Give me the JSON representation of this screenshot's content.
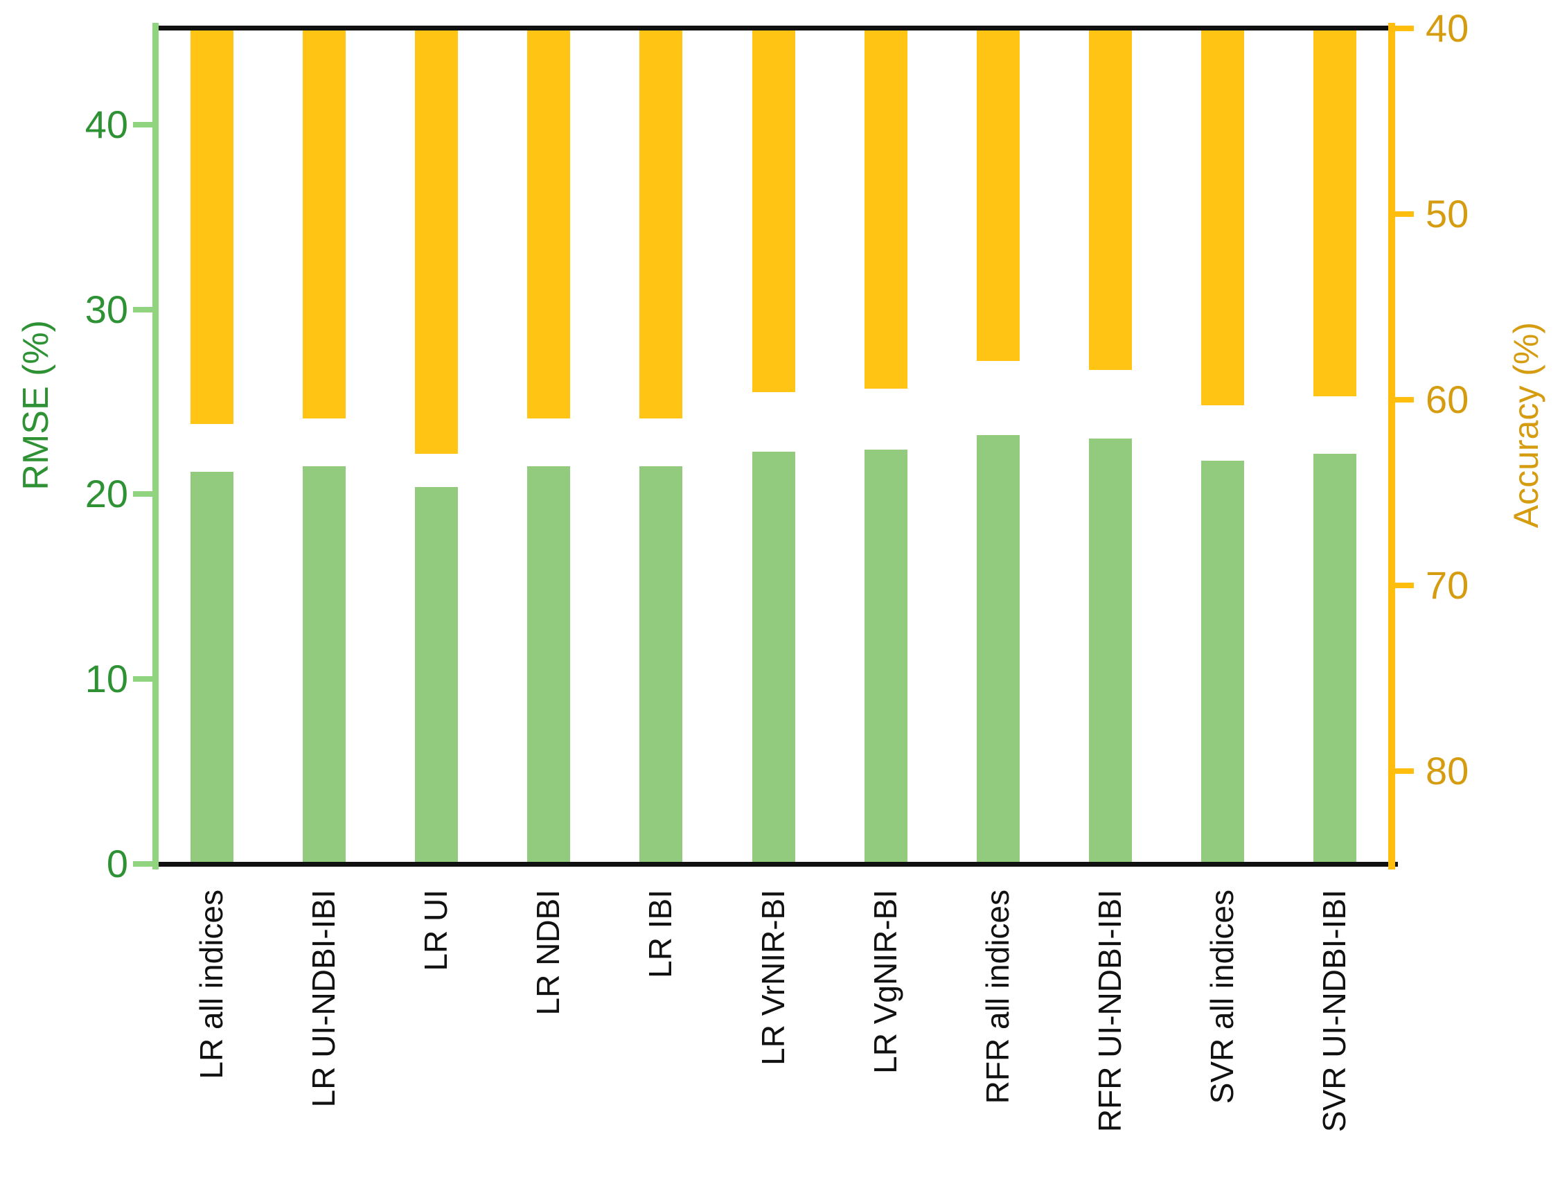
{
  "chart_data": {
    "type": "bar",
    "title": "",
    "categories": [
      "LR all indices",
      "LR UI-NDBI-IBI",
      "LR UI",
      "LR NDBI",
      "LR IBI",
      "LR VrNIR-BI",
      "LR VgNIR-BI",
      "RFR all indices",
      "RFR UI-NDBI-IBI",
      "SVR all indices",
      "SVR UI-NDBI-IBI"
    ],
    "series": [
      {
        "name": "RMSE",
        "axis": "left",
        "anchored": "bottom",
        "color": "#92CB7D",
        "values": [
          21.2,
          21.5,
          20.4,
          21.5,
          21.5,
          22.3,
          22.4,
          23.2,
          23.0,
          21.8,
          22.2
        ]
      },
      {
        "name": "Accuracy",
        "axis": "right",
        "anchored": "top",
        "color": "#FFC414",
        "values": [
          61.3,
          61.0,
          62.9,
          61.0,
          61.0,
          59.6,
          59.4,
          57.9,
          58.4,
          60.3,
          59.8
        ]
      }
    ],
    "left_axis": {
      "label": "RMSE (%)",
      "ticks": [
        0,
        10,
        20,
        30,
        40
      ],
      "range": [
        0,
        45.2
      ],
      "inverted": false,
      "text_color": "#2E9235",
      "line_color": "#90D480"
    },
    "right_axis": {
      "label": "Accuracy (%)",
      "ticks": [
        40,
        50,
        60,
        70,
        80
      ],
      "range": [
        40,
        85
      ],
      "inverted": true,
      "text_color": "#D69C10",
      "line_color": "#FFBE0D"
    },
    "x_axis": {
      "label": "",
      "text_color": "#111111"
    },
    "plot": {
      "background": "#FFFFFF",
      "border_color": "#111111"
    },
    "legend": {
      "visible": false
    },
    "grid": false
  }
}
